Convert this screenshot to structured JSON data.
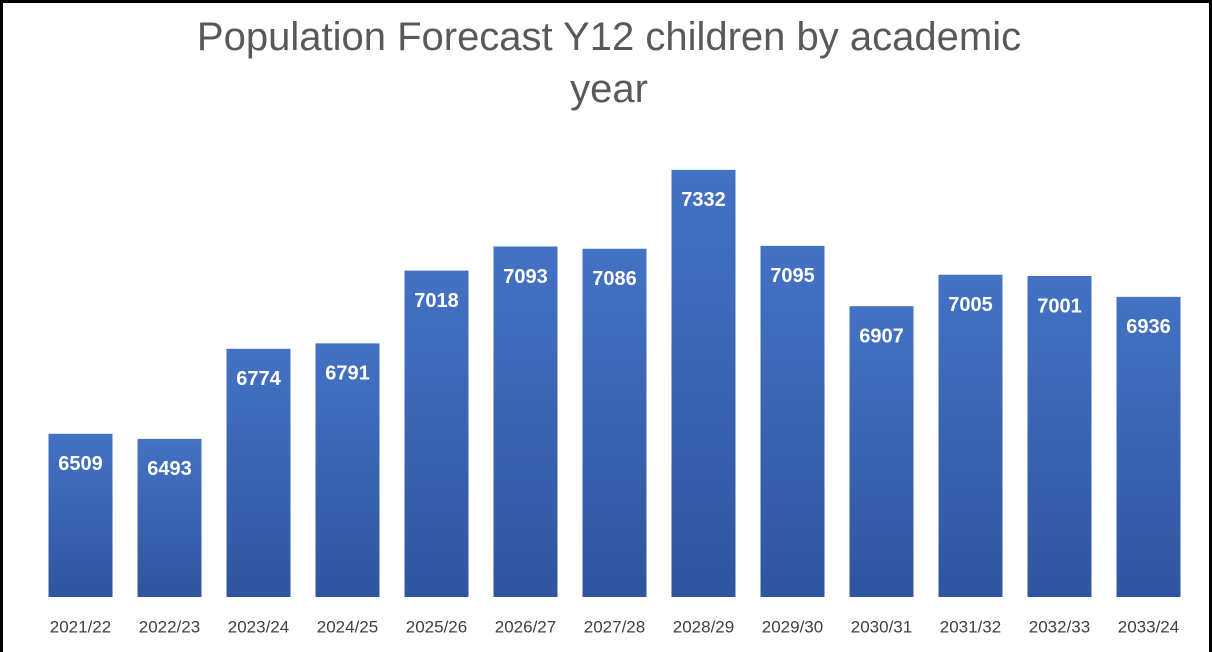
{
  "chart_data": {
    "type": "bar",
    "title": "Population Forecast Y12 children by academic year",
    "categories": [
      "2021/22",
      "2022/23",
      "2023/24",
      "2024/25",
      "2025/26",
      "2026/27",
      "2027/28",
      "2028/29",
      "2029/30",
      "2030/31",
      "2031/32",
      "2032/33",
      "2033/24"
    ],
    "values": [
      6509,
      6493,
      6774,
      6791,
      7018,
      7093,
      7086,
      7332,
      7095,
      6907,
      7005,
      7001,
      6936
    ],
    "color": "#4472c4",
    "ylim": [
      6000,
      7500
    ]
  }
}
